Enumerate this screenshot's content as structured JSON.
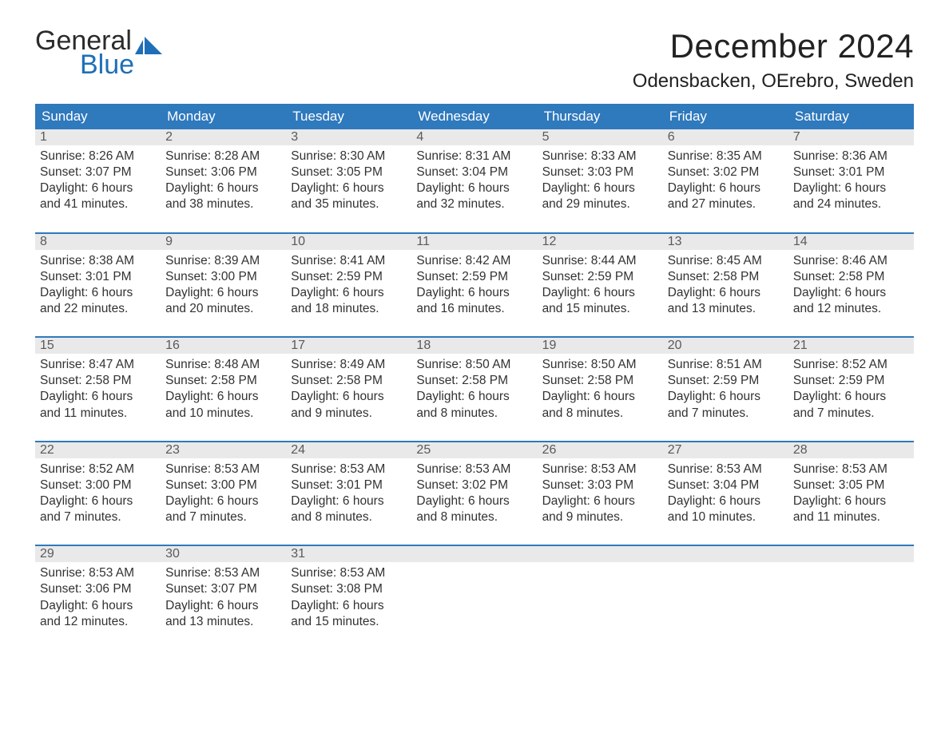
{
  "logo": {
    "text1": "General",
    "text2": "Blue"
  },
  "title": "December 2024",
  "location": "Odensbacken, OErebro, Sweden",
  "colors": {
    "header_bg": "#2f79bd",
    "header_text": "#ffffff",
    "daynum_bg": "#e9e9e9",
    "daynum_text": "#5a5a5a",
    "body_text": "#323232",
    "accent_rule": "#2f79bd",
    "logo_blue": "#1e6fb8"
  },
  "columns": [
    "Sunday",
    "Monday",
    "Tuesday",
    "Wednesday",
    "Thursday",
    "Friday",
    "Saturday"
  ],
  "weeks": [
    [
      {
        "n": "1",
        "sunrise": "8:26 AM",
        "sunset": "3:07 PM",
        "daylight": "6 hours and 41 minutes."
      },
      {
        "n": "2",
        "sunrise": "8:28 AM",
        "sunset": "3:06 PM",
        "daylight": "6 hours and 38 minutes."
      },
      {
        "n": "3",
        "sunrise": "8:30 AM",
        "sunset": "3:05 PM",
        "daylight": "6 hours and 35 minutes."
      },
      {
        "n": "4",
        "sunrise": "8:31 AM",
        "sunset": "3:04 PM",
        "daylight": "6 hours and 32 minutes."
      },
      {
        "n": "5",
        "sunrise": "8:33 AM",
        "sunset": "3:03 PM",
        "daylight": "6 hours and 29 minutes."
      },
      {
        "n": "6",
        "sunrise": "8:35 AM",
        "sunset": "3:02 PM",
        "daylight": "6 hours and 27 minutes."
      },
      {
        "n": "7",
        "sunrise": "8:36 AM",
        "sunset": "3:01 PM",
        "daylight": "6 hours and 24 minutes."
      }
    ],
    [
      {
        "n": "8",
        "sunrise": "8:38 AM",
        "sunset": "3:01 PM",
        "daylight": "6 hours and 22 minutes."
      },
      {
        "n": "9",
        "sunrise": "8:39 AM",
        "sunset": "3:00 PM",
        "daylight": "6 hours and 20 minutes."
      },
      {
        "n": "10",
        "sunrise": "8:41 AM",
        "sunset": "2:59 PM",
        "daylight": "6 hours and 18 minutes."
      },
      {
        "n": "11",
        "sunrise": "8:42 AM",
        "sunset": "2:59 PM",
        "daylight": "6 hours and 16 minutes."
      },
      {
        "n": "12",
        "sunrise": "8:44 AM",
        "sunset": "2:59 PM",
        "daylight": "6 hours and 15 minutes."
      },
      {
        "n": "13",
        "sunrise": "8:45 AM",
        "sunset": "2:58 PM",
        "daylight": "6 hours and 13 minutes."
      },
      {
        "n": "14",
        "sunrise": "8:46 AM",
        "sunset": "2:58 PM",
        "daylight": "6 hours and 12 minutes."
      }
    ],
    [
      {
        "n": "15",
        "sunrise": "8:47 AM",
        "sunset": "2:58 PM",
        "daylight": "6 hours and 11 minutes."
      },
      {
        "n": "16",
        "sunrise": "8:48 AM",
        "sunset": "2:58 PM",
        "daylight": "6 hours and 10 minutes."
      },
      {
        "n": "17",
        "sunrise": "8:49 AM",
        "sunset": "2:58 PM",
        "daylight": "6 hours and 9 minutes."
      },
      {
        "n": "18",
        "sunrise": "8:50 AM",
        "sunset": "2:58 PM",
        "daylight": "6 hours and 8 minutes."
      },
      {
        "n": "19",
        "sunrise": "8:50 AM",
        "sunset": "2:58 PM",
        "daylight": "6 hours and 8 minutes."
      },
      {
        "n": "20",
        "sunrise": "8:51 AM",
        "sunset": "2:59 PM",
        "daylight": "6 hours and 7 minutes."
      },
      {
        "n": "21",
        "sunrise": "8:52 AM",
        "sunset": "2:59 PM",
        "daylight": "6 hours and 7 minutes."
      }
    ],
    [
      {
        "n": "22",
        "sunrise": "8:52 AM",
        "sunset": "3:00 PM",
        "daylight": "6 hours and 7 minutes."
      },
      {
        "n": "23",
        "sunrise": "8:53 AM",
        "sunset": "3:00 PM",
        "daylight": "6 hours and 7 minutes."
      },
      {
        "n": "24",
        "sunrise": "8:53 AM",
        "sunset": "3:01 PM",
        "daylight": "6 hours and 8 minutes."
      },
      {
        "n": "25",
        "sunrise": "8:53 AM",
        "sunset": "3:02 PM",
        "daylight": "6 hours and 8 minutes."
      },
      {
        "n": "26",
        "sunrise": "8:53 AM",
        "sunset": "3:03 PM",
        "daylight": "6 hours and 9 minutes."
      },
      {
        "n": "27",
        "sunrise": "8:53 AM",
        "sunset": "3:04 PM",
        "daylight": "6 hours and 10 minutes."
      },
      {
        "n": "28",
        "sunrise": "8:53 AM",
        "sunset": "3:05 PM",
        "daylight": "6 hours and 11 minutes."
      }
    ],
    [
      {
        "n": "29",
        "sunrise": "8:53 AM",
        "sunset": "3:06 PM",
        "daylight": "6 hours and 12 minutes."
      },
      {
        "n": "30",
        "sunrise": "8:53 AM",
        "sunset": "3:07 PM",
        "daylight": "6 hours and 13 minutes."
      },
      {
        "n": "31",
        "sunrise": "8:53 AM",
        "sunset": "3:08 PM",
        "daylight": "6 hours and 15 minutes."
      },
      {
        "n": "",
        "sunrise": "",
        "sunset": "",
        "daylight": "",
        "empty": true
      },
      {
        "n": "",
        "sunrise": "",
        "sunset": "",
        "daylight": "",
        "empty": true
      },
      {
        "n": "",
        "sunrise": "",
        "sunset": "",
        "daylight": "",
        "empty": true
      },
      {
        "n": "",
        "sunrise": "",
        "sunset": "",
        "daylight": "",
        "empty": true
      }
    ]
  ],
  "labels": {
    "sunrise_prefix": "Sunrise: ",
    "sunset_prefix": "Sunset: ",
    "daylight_prefix": "Daylight: "
  }
}
